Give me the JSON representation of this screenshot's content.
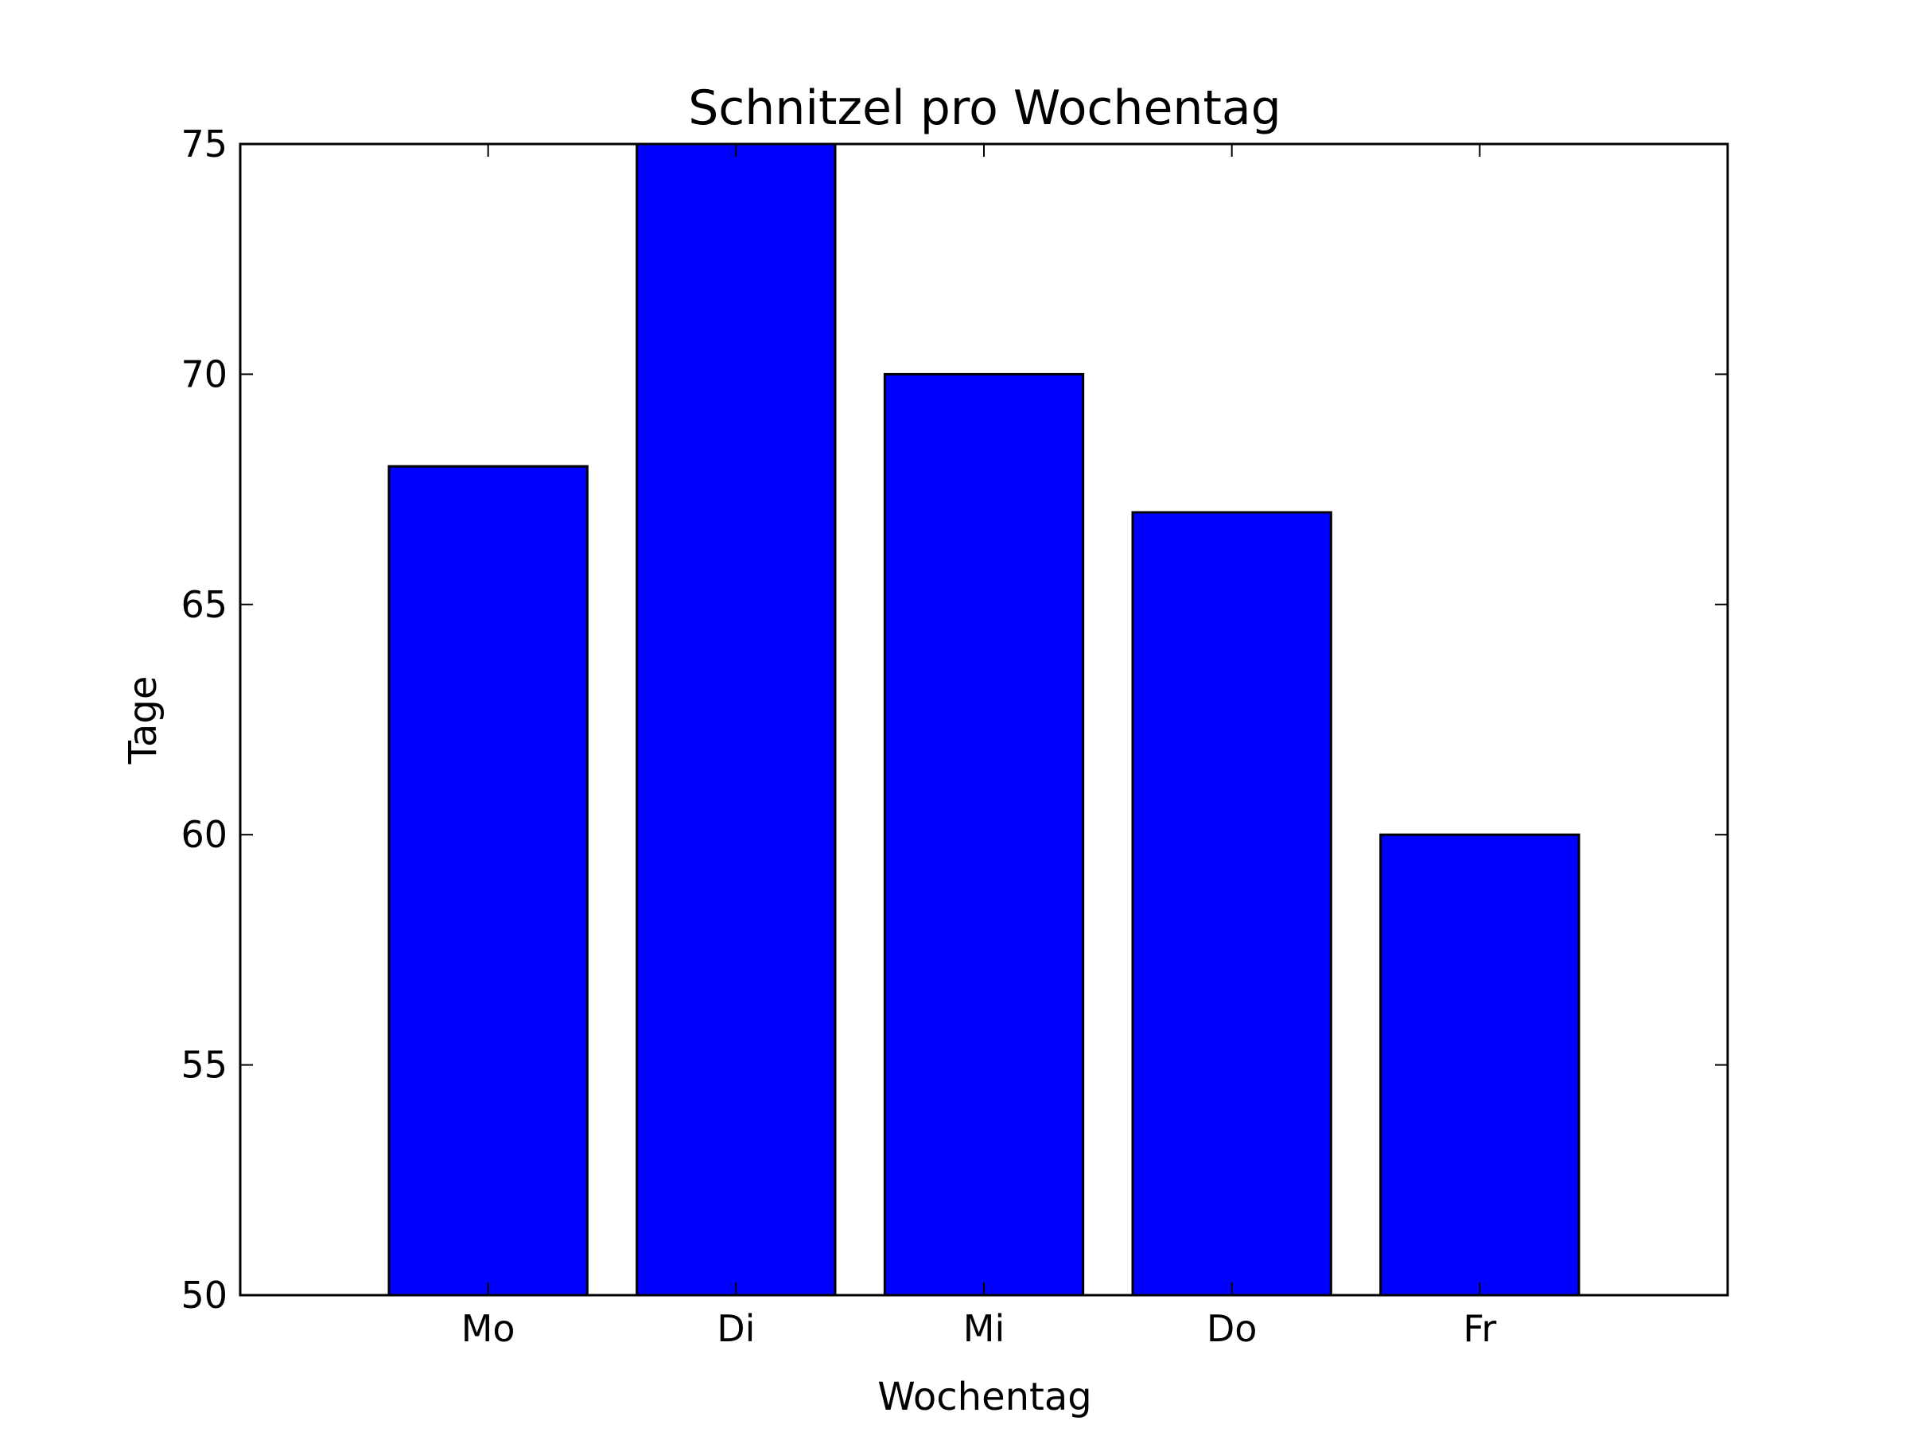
{
  "chart_data": {
    "type": "bar",
    "title": "Schnitzel pro Wochentag",
    "xlabel": "Wochentag",
    "ylabel": "Tage",
    "categories": [
      "Mo",
      "Di",
      "Mi",
      "Do",
      "Fr"
    ],
    "values": [
      68,
      75,
      70,
      67,
      60
    ],
    "ylim": [
      50,
      75
    ],
    "yticks": [
      50,
      55,
      60,
      65,
      70,
      75
    ],
    "xlim": [
      -1,
      5
    ],
    "bar_width": 0.8,
    "grid": false,
    "colors": {
      "bar_fill": "#0000ff",
      "bar_edge": "#000000",
      "axis": "#000000",
      "background": "#ffffff"
    }
  }
}
